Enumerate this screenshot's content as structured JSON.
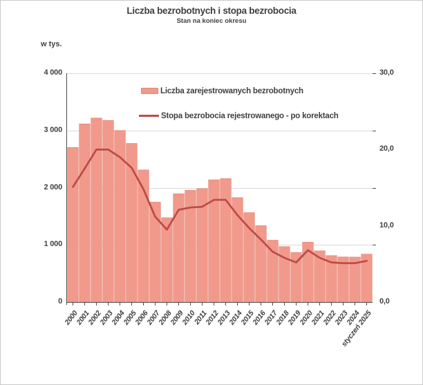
{
  "header": {
    "title": "Liczba bezrobotnych i stopa bezrobocia",
    "subtitle": "Stan na koniec okresu"
  },
  "left_axis_unit": "w tys.",
  "legend": [
    {
      "swatch": "bar-swatch",
      "label": "Liczba zarejestrowanych bezrobotnych"
    },
    {
      "swatch": "line-swatch",
      "label": "Stopa bezrobocia rejestrowanego - po korektach"
    }
  ],
  "colors": {
    "bar_fill": "#F19A8B",
    "bar_edge": "#E5887A",
    "line": "#BE4B48",
    "grid": "#D9D9D9",
    "axis": "#4D4D4D",
    "text_dark": "#3F3F3F",
    "text_axis": "#404040"
  },
  "chart_data": {
    "type": "bar",
    "title": "Liczba bezrobotnych i stopa bezrobocia",
    "subtitle": "Stan na koniec okresu",
    "categories": [
      "2000",
      "2001",
      "2002",
      "2003",
      "2004",
      "2005",
      "2006",
      "2007",
      "2008",
      "2009",
      "2010",
      "2011",
      "2012",
      "2013",
      "2014",
      "2015",
      "2016",
      "2017",
      "2018",
      "2019",
      "2020",
      "2021",
      "2022",
      "2023",
      "2024",
      "styczeń 2025"
    ],
    "series": [
      {
        "name": "Liczba zarejestrowanych bezrobotnych",
        "type": "bar",
        "axis": "left",
        "unit": "tys.",
        "values": [
          2702.6,
          3115.1,
          3217.0,
          3175.7,
          2999.6,
          2773.0,
          2309.4,
          1746.6,
          1473.8,
          1892.7,
          1954.7,
          1982.7,
          2136.8,
          2157.9,
          1825.2,
          1563.3,
          1335.2,
          1081.7,
          968.9,
          866.4,
          1046.4,
          895.2,
          812.3,
          788.2,
          786.1,
          837.1
        ]
      },
      {
        "name": "Stopa bezrobocia rejestrowanego - po korektach",
        "type": "line",
        "axis": "right",
        "unit": "%",
        "values": [
          15.1,
          17.5,
          20.0,
          20.0,
          19.0,
          17.6,
          14.8,
          11.2,
          9.5,
          12.1,
          12.4,
          12.5,
          13.4,
          13.4,
          11.4,
          9.7,
          8.2,
          6.6,
          5.8,
          5.2,
          6.8,
          5.8,
          5.2,
          5.1,
          5.1,
          5.4
        ]
      }
    ],
    "left_axis": {
      "min": 0,
      "max": 4000,
      "unit_label": "w tys.",
      "ticks": [
        {
          "label": "4 000",
          "value": 4000
        },
        {
          "label": "3 000",
          "value": 3000
        },
        {
          "label": "2 000",
          "value": 2000
        },
        {
          "label": "1 000",
          "value": 1000
        },
        {
          "label": "0",
          "value": 0
        }
      ]
    },
    "right_axis": {
      "min": 0,
      "max": 30,
      "ticks": [
        {
          "label": "30,0",
          "value": 30
        },
        {
          "label": "20,0",
          "value": 20
        },
        {
          "label": "10,0",
          "value": 10
        },
        {
          "label": "0,0",
          "value": 0
        }
      ]
    },
    "grid": true,
    "legend_position": "inside-top"
  }
}
